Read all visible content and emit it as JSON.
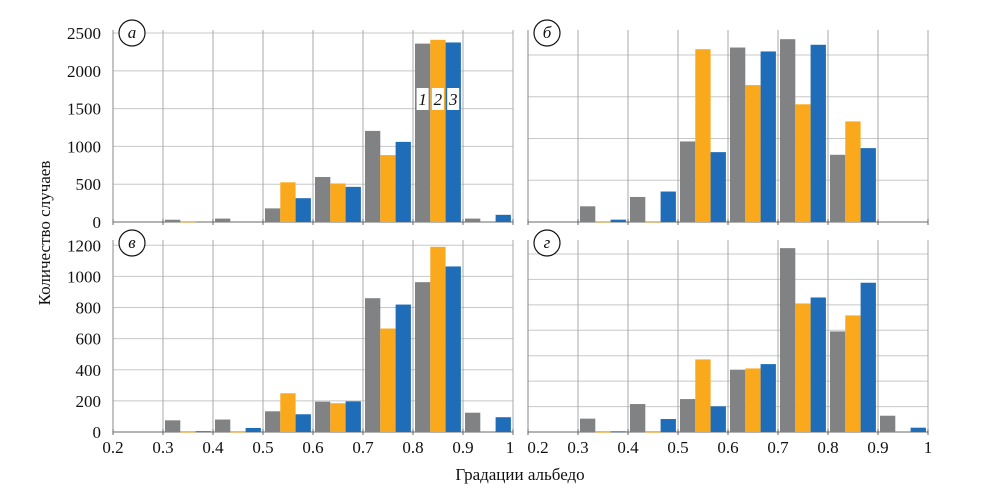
{
  "chart_data": {
    "type": "bar",
    "ylabel": "Количество случаев",
    "xlabel": "Градации альбедо",
    "bar_labels": [
      "1",
      "2",
      "3"
    ],
    "series_colors": [
      "#808284",
      "#fba91c",
      "#1f6cb8"
    ],
    "x_ticks": [
      "0.2",
      "0.3",
      "0.4",
      "0.5",
      "0.6",
      "0.7",
      "0.8",
      "0.9",
      "1"
    ],
    "bins": [
      0.2,
      0.3,
      0.4,
      0.5,
      0.6,
      0.7,
      0.8,
      0.9
    ],
    "panels": [
      {
        "label": "а",
        "ylim": [
          0,
          2540
        ],
        "grid_step": 500,
        "y_ticks": [
          "0",
          "500",
          "1000",
          "1500",
          "2000",
          "2500"
        ],
        "series": [
          {
            "name": "1",
            "values": [
              0,
              30,
              45,
              180,
              595,
              1205,
              2360,
              45
            ]
          },
          {
            "name": "2",
            "values": [
              0,
              5,
              0,
              525,
              510,
              885,
              2410,
              0
            ]
          },
          {
            "name": "3",
            "values": [
              0,
              0,
              0,
              315,
              465,
              1060,
              2375,
              95
            ]
          }
        ]
      },
      {
        "label": "б",
        "ylim": [
          0,
          2300
        ],
        "grid_step": 500,
        "y_ticks": [],
        "series": [
          {
            "name": "1",
            "values": [
              0,
              188,
              300,
              965,
              2090,
              2190,
              805,
              0
            ]
          },
          {
            "name": "2",
            "values": [
              0,
              5,
              5,
              2070,
              1640,
              1410,
              1205,
              0
            ]
          },
          {
            "name": "3",
            "values": [
              0,
              28,
              365,
              837,
              2043,
              2123,
              885,
              0
            ]
          }
        ]
      },
      {
        "label": "в",
        "ylim": [
          0,
          1234
        ],
        "grid_step": 200,
        "y_ticks": [
          "0",
          "200",
          "400",
          "600",
          "800",
          "1000",
          "1200"
        ],
        "series": [
          {
            "name": "1",
            "values": [
              0,
              75,
              80,
              133,
              195,
              860,
              963,
              124
            ]
          },
          {
            "name": "2",
            "values": [
              0,
              2,
              2,
              249,
              185,
              665,
              1190,
              0
            ]
          },
          {
            "name": "3",
            "values": [
              0,
              5,
              26,
              114,
              197,
              819,
              1064,
              95
            ]
          }
        ]
      },
      {
        "label": "г",
        "ylim": [
          0,
          1510
        ],
        "grid_step": 200,
        "y_ticks": [],
        "series": [
          {
            "name": "1",
            "values": [
              0,
              105,
              220,
              259,
              490,
              1446,
              791,
              128
            ]
          },
          {
            "name": "2",
            "values": [
              0,
              2,
              2,
              571,
              500,
              1011,
              917,
              0
            ]
          },
          {
            "name": "3",
            "values": [
              0,
              5,
              102,
              202,
              534,
              1058,
              1174,
              34
            ]
          }
        ]
      }
    ]
  }
}
